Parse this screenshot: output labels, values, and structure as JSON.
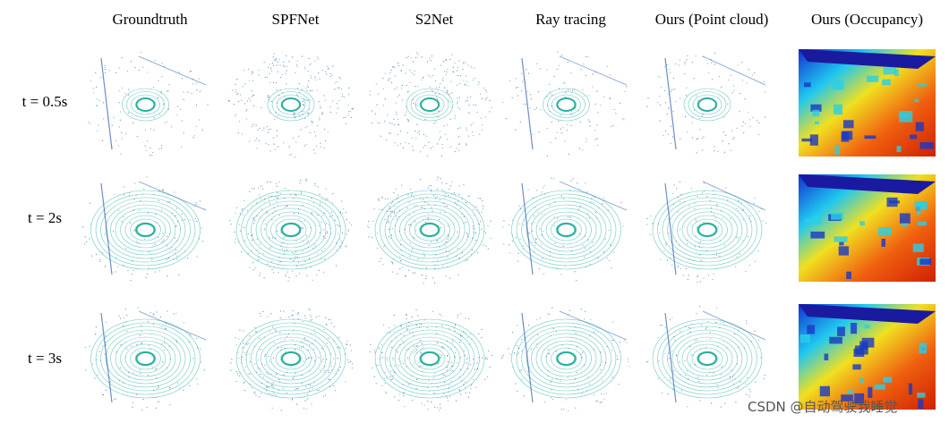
{
  "figure": {
    "columns": [
      "Groundtruth",
      "SPFNet",
      "S2Net",
      "Ray tracing",
      "Ours (Point cloud)",
      "Ours (Occupancy)"
    ],
    "rows": [
      "t = 0.5s",
      "t = 2s",
      "t = 3s"
    ]
  },
  "watermark": "CSDN @自动驾驶我睡觉"
}
